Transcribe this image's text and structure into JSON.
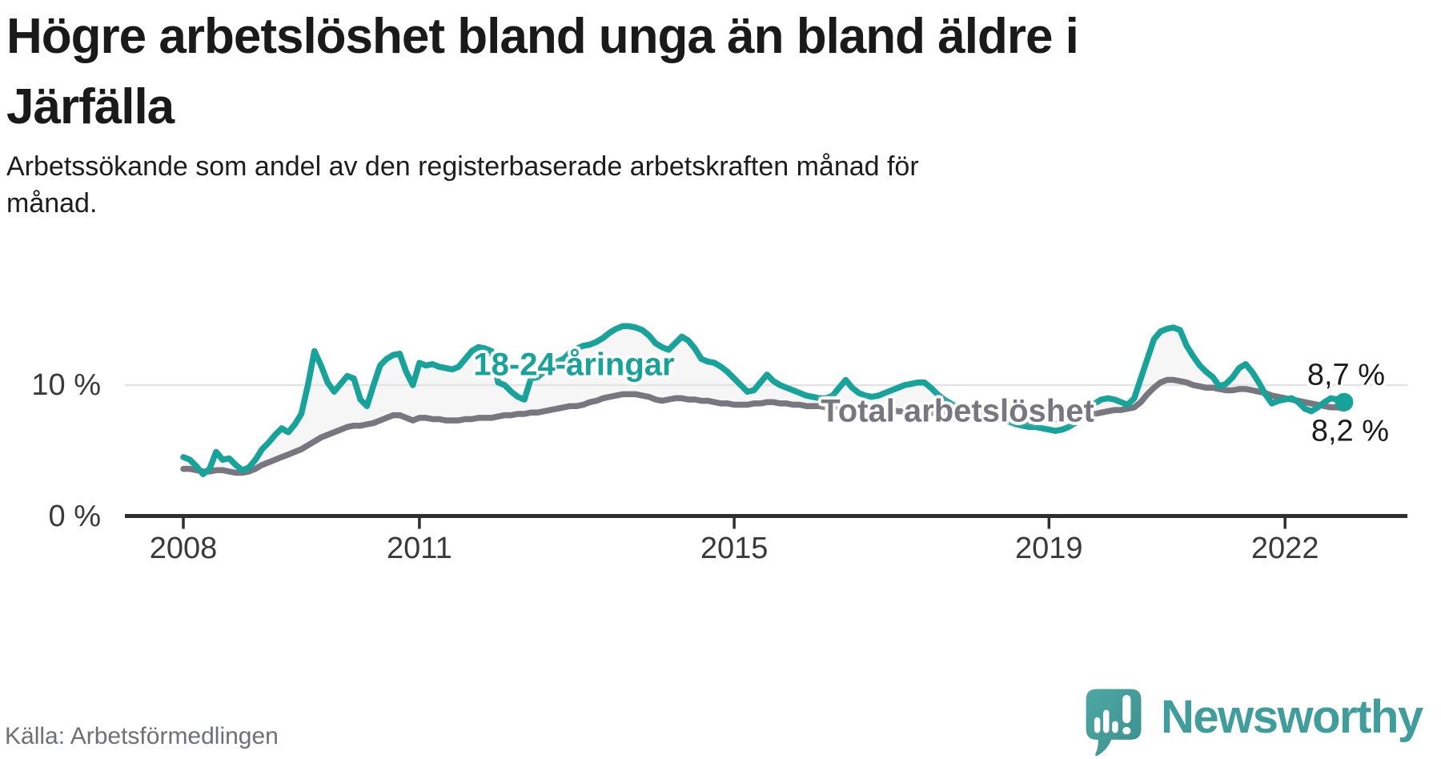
{
  "title": {
    "line1": "Högre arbetslöshet bland unga än bland äldre i",
    "line2": "Järfälla"
  },
  "subtitle": {
    "line1": "Arbetssökande som andel av den registerbaserade arbetskraften månad för",
    "line2": "månad."
  },
  "source": "Källa: Arbetsförmedlingen",
  "brand": {
    "name": "Newsworthy",
    "icon": "newsworthy-speech-bubble-bar-chart-icon"
  },
  "labels": {
    "youth_series": "18-24-åringar",
    "total_series": "Total arbetslöshet",
    "youth_end_value": "8,7 %",
    "total_end_value": "8,2 %"
  },
  "y_axis": {
    "ticks": [
      {
        "value": 10,
        "label": "10 %"
      },
      {
        "value": 0,
        "label": "0 %"
      }
    ]
  },
  "x_axis": {
    "ticks": [
      {
        "year": 2008,
        "label": "2008"
      },
      {
        "year": 2011,
        "label": "2011"
      },
      {
        "year": 2015,
        "label": "2015"
      },
      {
        "year": 2019,
        "label": "2019"
      },
      {
        "year": 2022,
        "label": "2022"
      }
    ]
  },
  "colors": {
    "youth": "#16a39a",
    "total": "#78767e",
    "band_fill": "#f6f6f6",
    "grid": "#e3e3e3",
    "axis": "#2f2f2f",
    "heading": "#1a1a1a",
    "source_text": "#6e7076",
    "brand_teal": "#3f9e9b"
  },
  "chart_data": {
    "type": "line",
    "x_start": "2008-01",
    "x_end": "2022-10",
    "frequency": "monthly",
    "unit": "% av den registerbaserade arbetskraften",
    "ylim": [
      0,
      16
    ],
    "grid_y_values": [
      10
    ],
    "legend_position": "inline-labels",
    "series": [
      {
        "name": "18-24-åringar",
        "color": "#16a39a",
        "end_label": "8,7 %",
        "values": [
          4.5,
          4.3,
          3.8,
          3.2,
          3.6,
          4.9,
          4.3,
          4.4,
          3.9,
          3.5,
          3.7,
          4.3,
          5.1,
          5.6,
          6.2,
          6.7,
          6.4,
          7.0,
          7.8,
          10.0,
          12.6,
          11.5,
          10.2,
          9.5,
          10.1,
          10.7,
          10.5,
          8.9,
          8.4,
          10.0,
          11.5,
          12.0,
          12.3,
          12.4,
          11.0,
          10.0,
          11.7,
          11.5,
          11.6,
          11.4,
          11.3,
          11.2,
          11.4,
          12.0,
          12.6,
          12.9,
          12.8,
          12.6,
          10.2,
          10.0,
          9.5,
          9.1,
          8.9,
          10.5,
          10.6,
          11.0,
          11.5,
          11.8,
          12.0,
          12.5,
          12.8,
          13.0,
          13.1,
          13.3,
          13.6,
          14.0,
          14.3,
          14.5,
          14.5,
          14.4,
          14.2,
          13.8,
          13.2,
          12.9,
          12.7,
          13.2,
          13.7,
          13.4,
          12.8,
          12.0,
          11.8,
          11.7,
          11.4,
          11.0,
          10.5,
          10.0,
          9.5,
          9.6,
          10.2,
          10.8,
          10.3,
          10.0,
          9.8,
          9.6,
          9.4,
          9.2,
          9.1,
          9.0,
          9.0,
          9.2,
          9.8,
          10.4,
          9.8,
          9.4,
          9.2,
          9.1,
          9.2,
          9.4,
          9.6,
          9.8,
          10.0,
          10.1,
          10.2,
          10.2,
          9.8,
          9.3,
          8.9,
          8.6,
          8.3,
          8.1,
          8.0,
          7.9,
          7.8,
          7.6,
          7.4,
          7.3,
          7.2,
          7.0,
          6.9,
          6.8,
          6.8,
          6.7,
          6.6,
          6.5,
          6.6,
          6.8,
          7.1,
          7.6,
          8.2,
          8.6,
          8.9,
          9.0,
          8.9,
          8.7,
          8.5,
          9.0,
          10.5,
          12.0,
          13.5,
          14.1,
          14.3,
          14.4,
          14.2,
          13.0,
          12.2,
          11.5,
          11.0,
          10.6,
          9.9,
          10.1,
          10.6,
          11.3,
          11.6,
          11.0,
          10.2,
          9.3,
          8.6,
          8.8,
          8.9,
          9.0,
          8.7,
          8.2,
          8.0,
          8.3,
          8.7,
          9.0,
          8.9,
          8.7
        ]
      },
      {
        "name": "Total arbetslöshet",
        "color": "#78767e",
        "end_label": "8,2 %",
        "values": [
          3.6,
          3.6,
          3.5,
          3.4,
          3.4,
          3.5,
          3.5,
          3.4,
          3.3,
          3.3,
          3.4,
          3.6,
          3.9,
          4.1,
          4.3,
          4.5,
          4.7,
          4.9,
          5.1,
          5.4,
          5.7,
          6.0,
          6.2,
          6.4,
          6.6,
          6.8,
          6.9,
          6.9,
          7.0,
          7.1,
          7.3,
          7.5,
          7.7,
          7.7,
          7.5,
          7.3,
          7.5,
          7.5,
          7.4,
          7.4,
          7.3,
          7.3,
          7.3,
          7.4,
          7.4,
          7.5,
          7.5,
          7.5,
          7.6,
          7.7,
          7.7,
          7.8,
          7.8,
          7.9,
          7.9,
          8.0,
          8.1,
          8.2,
          8.3,
          8.4,
          8.4,
          8.5,
          8.7,
          8.8,
          9.0,
          9.1,
          9.2,
          9.3,
          9.3,
          9.3,
          9.2,
          9.1,
          8.9,
          8.8,
          8.9,
          9.0,
          9.0,
          8.9,
          8.9,
          8.8,
          8.8,
          8.7,
          8.6,
          8.6,
          8.5,
          8.5,
          8.5,
          8.6,
          8.6,
          8.7,
          8.7,
          8.6,
          8.6,
          8.5,
          8.5,
          8.4,
          8.4,
          8.4,
          8.3,
          8.3,
          8.3,
          8.3,
          8.2,
          8.2,
          8.1,
          8.1,
          8.1,
          8.1,
          8.1,
          8.0,
          8.0,
          8.0,
          8.0,
          7.9,
          7.9,
          7.8,
          7.8,
          7.7,
          7.7,
          7.6,
          7.6,
          7.5,
          7.5,
          7.4,
          7.4,
          7.3,
          7.3,
          7.3,
          7.3,
          7.3,
          7.3,
          7.3,
          7.4,
          7.4,
          7.4,
          7.5,
          7.5,
          7.6,
          7.7,
          7.8,
          7.9,
          8.0,
          8.1,
          8.1,
          8.2,
          8.3,
          8.7,
          9.3,
          9.8,
          10.2,
          10.4,
          10.4,
          10.3,
          10.2,
          10.0,
          9.9,
          9.8,
          9.8,
          9.7,
          9.6,
          9.6,
          9.7,
          9.7,
          9.6,
          9.5,
          9.4,
          9.2,
          9.1,
          9.0,
          8.9,
          8.8,
          8.7,
          8.6,
          8.5,
          8.4,
          8.3,
          8.3,
          8.2
        ]
      }
    ]
  }
}
